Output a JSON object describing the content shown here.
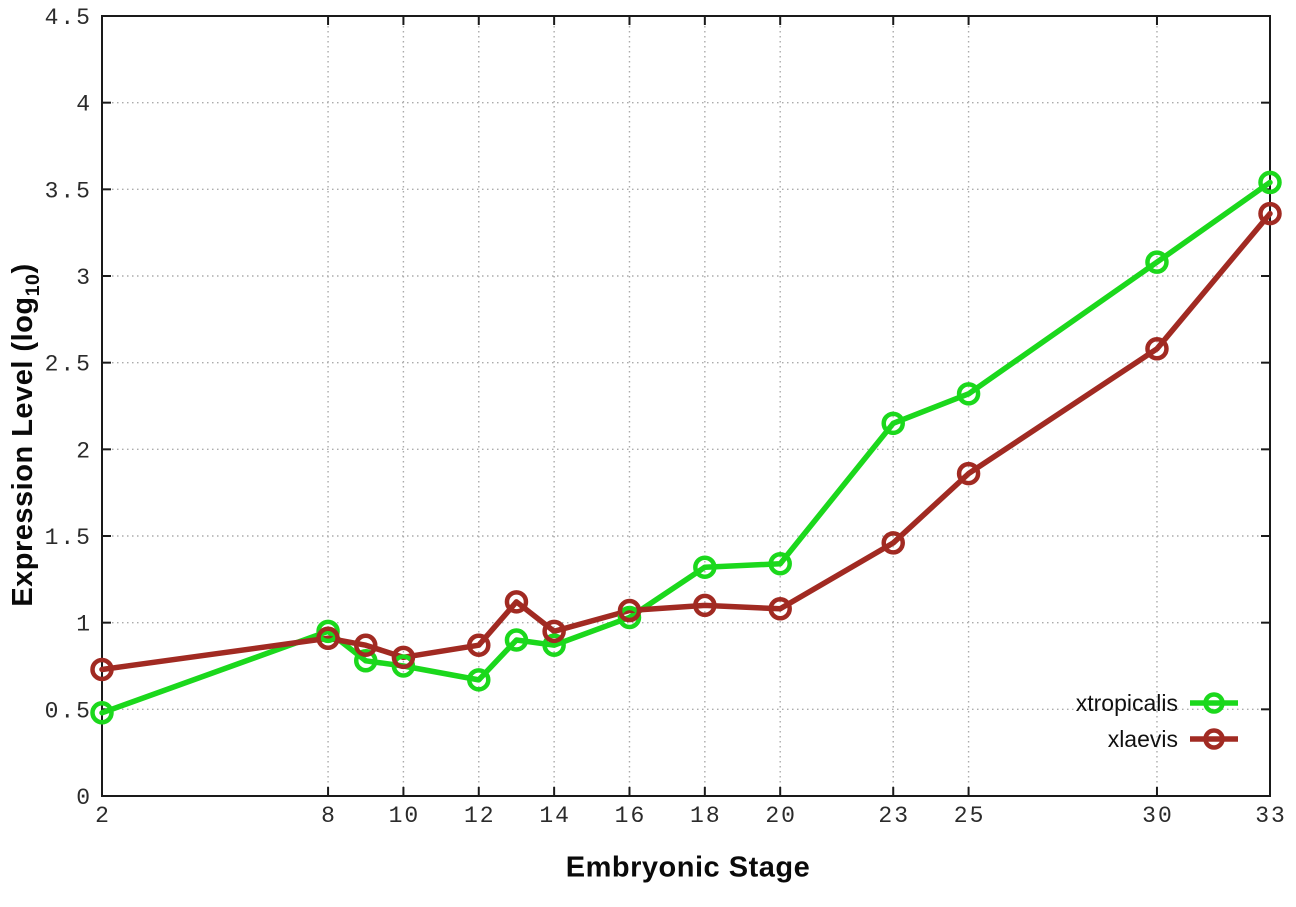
{
  "chart_data": {
    "type": "line",
    "title": "",
    "xlabel": "Embryonic Stage",
    "ylabel": {
      "prefix": "Expression Level (log",
      "sub": "10",
      "suffix": ")"
    },
    "x": [
      2,
      8,
      9,
      10,
      12,
      13,
      14,
      16,
      18,
      20,
      23,
      25,
      30,
      33
    ],
    "xticks": [
      2,
      8,
      10,
      12,
      14,
      16,
      18,
      20,
      23,
      25,
      30,
      33
    ],
    "yticks": [
      0,
      0.5,
      1,
      1.5,
      2,
      2.5,
      3,
      3.5,
      4,
      4.5
    ],
    "xlim": [
      2,
      33
    ],
    "ylim": [
      0,
      4.5
    ],
    "grid": true,
    "legend_position": "inside-bottom-right",
    "series": [
      {
        "name": "xtropicalis",
        "color": "#1bd81c",
        "values": [
          0.48,
          0.95,
          0.78,
          0.75,
          0.67,
          0.9,
          0.87,
          1.03,
          1.32,
          1.34,
          2.15,
          2.32,
          3.08,
          3.54
        ]
      },
      {
        "name": "xlaevis",
        "color": "#a12a22",
        "values": [
          0.73,
          0.91,
          0.87,
          0.8,
          0.87,
          1.12,
          0.95,
          1.07,
          1.1,
          1.08,
          1.46,
          1.86,
          2.58,
          3.36
        ]
      }
    ],
    "frame_color": "#1a1a1a",
    "grid_color": "#ababab",
    "tick_label_color": "#2b2b2b"
  }
}
